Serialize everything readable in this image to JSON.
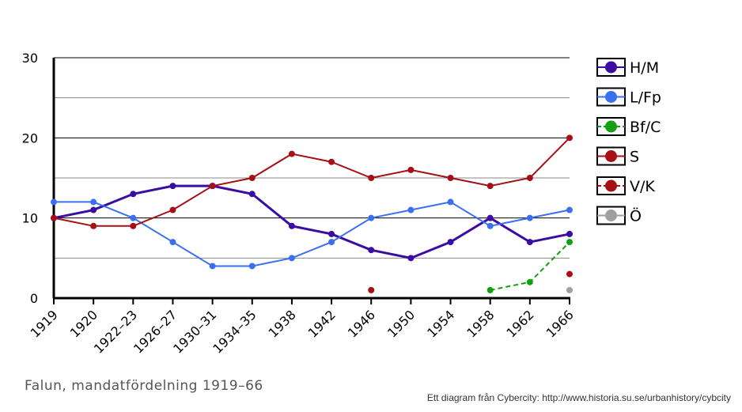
{
  "chart_data": {
    "type": "line",
    "categories": [
      "1919",
      "1920",
      "1922–23",
      "1926–27",
      "1930–31",
      "1934–35",
      "1938",
      "1942",
      "1946",
      "1950",
      "1954",
      "1958",
      "1962",
      "1966"
    ],
    "ylim": [
      0,
      30
    ],
    "yticks": [
      0,
      10,
      20,
      30
    ],
    "grid": true,
    "legend_placement": "right",
    "series": [
      {
        "name": "H/M",
        "color": "#3a0ca3",
        "dashed": false,
        "width": 3,
        "values": [
          10,
          11,
          13,
          14,
          14,
          13,
          9,
          8,
          6,
          5,
          7,
          10,
          7,
          8
        ]
      },
      {
        "name": "L/Fp",
        "color": "#3a6ff0",
        "dashed": false,
        "width": 2,
        "values": [
          12,
          12,
          10,
          7,
          4,
          4,
          5,
          7,
          10,
          11,
          12,
          9,
          10,
          11
        ]
      },
      {
        "name": "Bf/C",
        "color": "#10a010",
        "dashed": true,
        "width": 2,
        "values": [
          null,
          null,
          null,
          null,
          null,
          null,
          null,
          null,
          null,
          null,
          null,
          1,
          2,
          7
        ]
      },
      {
        "name": "S",
        "color": "#a50f15",
        "dashed": false,
        "width": 2,
        "values": [
          10,
          9,
          9,
          11,
          14,
          15,
          18,
          17,
          15,
          16,
          15,
          14,
          15,
          20
        ]
      },
      {
        "name": "V/K",
        "color": "#a50f15",
        "dashed": true,
        "width": 2,
        "values": [
          null,
          null,
          null,
          null,
          null,
          null,
          null,
          null,
          1,
          null,
          null,
          null,
          null,
          3
        ]
      },
      {
        "name": "Ö",
        "color": "#a0a0a0",
        "dashed": false,
        "width": 2,
        "values": [
          null,
          null,
          null,
          null,
          null,
          null,
          null,
          null,
          null,
          null,
          null,
          null,
          null,
          1
        ]
      }
    ]
  },
  "caption": "Falun, mandatfördelning 1919–66",
  "credit": "Ett diagram från Cybercity: http://www.historia.su.se/urbanhistory/cybcity"
}
